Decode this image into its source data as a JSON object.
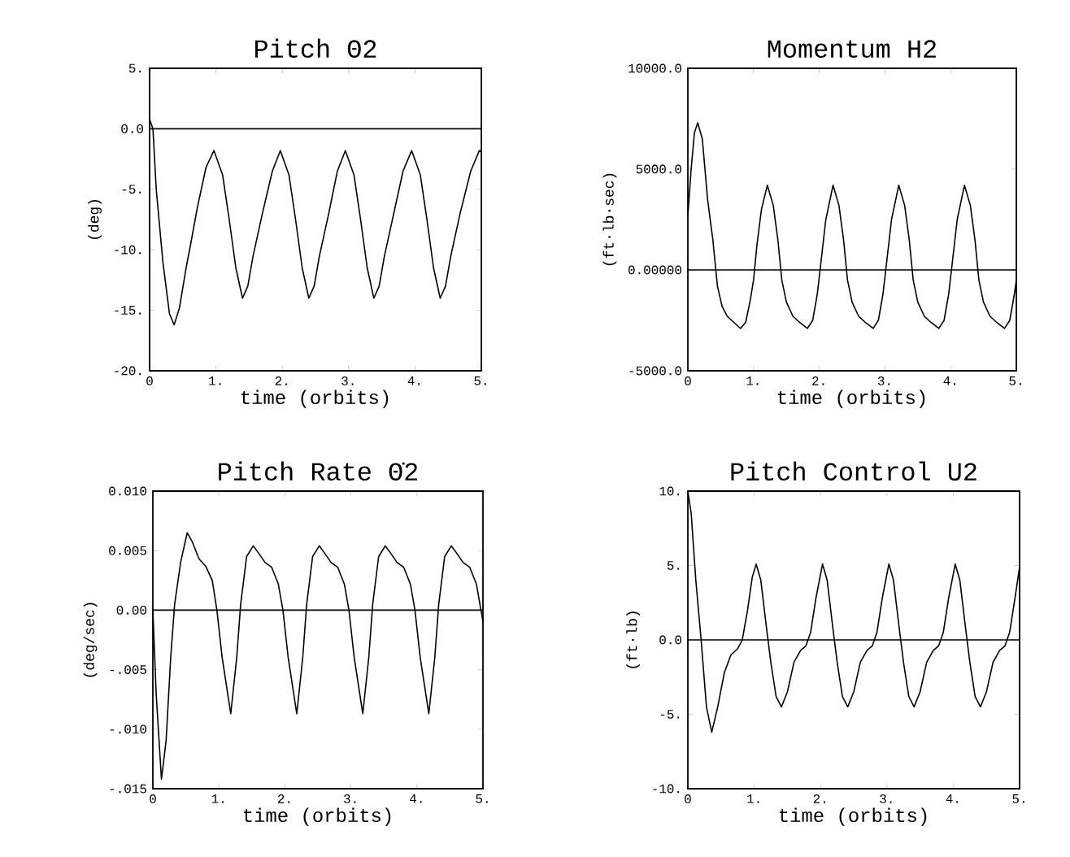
{
  "chart_data": [
    {
      "type": "line",
      "title": "Pitch Θ2",
      "xlabel": "time (orbits)",
      "ylabel": "(deg)",
      "xlim": [
        0,
        5
      ],
      "ylim": [
        -20,
        5
      ],
      "xticks": [
        0,
        {
          "value": 1,
          "label": "1."
        },
        {
          "value": 2,
          "label": "2."
        },
        {
          "value": 3,
          "label": "3."
        },
        {
          "value": 4,
          "label": "4."
        },
        {
          "value": 5,
          "label": "5."
        }
      ],
      "yticks": [
        {
          "value": -20,
          "label": "-20."
        },
        {
          "value": -15,
          "label": "-15."
        },
        {
          "value": -10,
          "label": "-10."
        },
        {
          "value": -5,
          "label": "-5."
        },
        {
          "value": 0,
          "label": "0.0"
        },
        {
          "value": 5,
          "label": "5."
        }
      ],
      "ref_lines": [
        {
          "axis": "y",
          "value": 0,
          "color": "#000000"
        }
      ],
      "series": [
        {
          "color": "#000000",
          "x": [
            0,
            0.05,
            0.1,
            0.2,
            0.3,
            0.37,
            0.45,
            0.55,
            0.62,
            0.72,
            0.85,
            0.97,
            1.1,
            1.2,
            1.3,
            1.4,
            1.48,
            1.56,
            1.7,
            1.85,
            1.97,
            2.1,
            2.2,
            2.3,
            2.4,
            2.48,
            2.56,
            2.7,
            2.83,
            2.95,
            3.08,
            3.18,
            3.28,
            3.38,
            3.46,
            3.54,
            3.68,
            3.82,
            3.95,
            4.08,
            4.18,
            4.28,
            4.38,
            4.46,
            4.54,
            4.68,
            4.84,
            4.97,
            5.0
          ],
          "values": [
            0.8,
            0,
            -5,
            -11,
            -15.3,
            -16.2,
            -14.8,
            -11.5,
            -9.5,
            -6.5,
            -3.2,
            -1.8,
            -3.8,
            -7.5,
            -11.5,
            -14,
            -13,
            -10.5,
            -7,
            -3.5,
            -1.8,
            -3.8,
            -7.5,
            -11.5,
            -14,
            -13,
            -10.5,
            -7,
            -3.5,
            -1.8,
            -3.8,
            -7.5,
            -11.5,
            -14,
            -13,
            -10.5,
            -7,
            -3.5,
            -1.8,
            -3.8,
            -7.5,
            -11.5,
            -14,
            -13,
            -10.5,
            -7,
            -3.5,
            -1.8,
            -1.9
          ]
        }
      ]
    },
    {
      "type": "line",
      "title": "Momentum H2",
      "xlabel": "time (orbits)",
      "ylabel": "(ft·lb·sec)",
      "xlim": [
        0,
        5
      ],
      "ylim": [
        -5000,
        10000
      ],
      "xticks": [
        0,
        {
          "value": 1,
          "label": "1."
        },
        {
          "value": 2,
          "label": "2."
        },
        {
          "value": 3,
          "label": "3."
        },
        {
          "value": 4,
          "label": "4."
        },
        {
          "value": 5,
          "label": "5."
        }
      ],
      "yticks": [
        {
          "value": -5000,
          "label": "-5000.0"
        },
        {
          "value": 0,
          "label": "0.00000"
        },
        {
          "value": 5000,
          "label": "5000.0"
        },
        {
          "value": 10000,
          "label": "10000.0"
        }
      ],
      "ref_lines": [
        {
          "axis": "y",
          "value": 0,
          "color": "#000000"
        }
      ],
      "series": [
        {
          "color": "#000000",
          "x": [
            0,
            0.05,
            0.1,
            0.15,
            0.22,
            0.3,
            0.38,
            0.45,
            0.52,
            0.6,
            0.7,
            0.8,
            0.88,
            0.95,
            1.0,
            1.05,
            1.12,
            1.21,
            1.3,
            1.37,
            1.43,
            1.5,
            1.6,
            1.7,
            1.82,
            1.9,
            1.97,
            2.03,
            2.1,
            2.21,
            2.3,
            2.37,
            2.43,
            2.5,
            2.6,
            2.7,
            2.82,
            2.9,
            2.97,
            3.03,
            3.1,
            3.21,
            3.3,
            3.37,
            3.43,
            3.5,
            3.6,
            3.7,
            3.82,
            3.9,
            3.97,
            4.03,
            4.1,
            4.21,
            4.3,
            4.37,
            4.43,
            4.5,
            4.6,
            4.7,
            4.82,
            4.9,
            4.97,
            5.0
          ],
          "values": [
            2700,
            5000,
            6800,
            7300,
            6500,
            3500,
            1500,
            -800,
            -1800,
            -2300,
            -2600,
            -2900,
            -2600,
            -1500,
            -500,
            1200,
            3000,
            4200,
            3200,
            1500,
            -500,
            -1600,
            -2300,
            -2600,
            -2900,
            -2500,
            -1200,
            500,
            2500,
            4200,
            3200,
            1500,
            -500,
            -1600,
            -2300,
            -2600,
            -2900,
            -2500,
            -1200,
            500,
            2500,
            4200,
            3200,
            1500,
            -500,
            -1600,
            -2300,
            -2600,
            -2900,
            -2500,
            -1200,
            500,
            2500,
            4200,
            3200,
            1500,
            -500,
            -1600,
            -2300,
            -2600,
            -2900,
            -2500,
            -1200,
            -500
          ]
        }
      ]
    },
    {
      "type": "line",
      "title": "Pitch Rate Θ̇2",
      "xlabel": "time (orbits)",
      "ylabel": "(deg/sec)",
      "xlim": [
        0,
        5
      ],
      "ylim": [
        -0.015,
        0.01
      ],
      "xticks": [
        0,
        {
          "value": 1,
          "label": "1."
        },
        {
          "value": 2,
          "label": "2."
        },
        {
          "value": 3,
          "label": "3."
        },
        {
          "value": 4,
          "label": "4."
        },
        {
          "value": 5,
          "label": "5."
        }
      ],
      "yticks": [
        {
          "value": -0.015,
          "label": "-.015"
        },
        {
          "value": -0.01,
          "label": "-.010"
        },
        {
          "value": -0.005,
          "label": "-.005"
        },
        {
          "value": 0,
          "label": "0.00"
        },
        {
          "value": 0.005,
          "label": "0.005"
        },
        {
          "value": 0.01,
          "label": "0.010"
        }
      ],
      "ref_lines": [
        {
          "axis": "y",
          "value": 0,
          "color": "#000000"
        }
      ],
      "series": [
        {
          "color": "#000000",
          "x": [
            0,
            0.05,
            0.13,
            0.2,
            0.27,
            0.33,
            0.42,
            0.52,
            0.6,
            0.7,
            0.8,
            0.9,
            0.97,
            1.05,
            1.18,
            1.27,
            1.33,
            1.42,
            1.52,
            1.6,
            1.7,
            1.8,
            1.9,
            1.97,
            2.05,
            2.18,
            2.27,
            2.33,
            2.42,
            2.52,
            2.6,
            2.7,
            2.8,
            2.9,
            2.97,
            3.05,
            3.18,
            3.27,
            3.33,
            3.42,
            3.52,
            3.6,
            3.7,
            3.8,
            3.9,
            3.97,
            4.05,
            4.18,
            4.27,
            4.33,
            4.42,
            4.52,
            4.6,
            4.7,
            4.8,
            4.9,
            4.97,
            5.0
          ],
          "values": [
            0,
            -0.007,
            -0.0142,
            -0.011,
            -0.004,
            0.0005,
            0.004,
            0.0065,
            0.0057,
            0.0043,
            0.0037,
            0.0025,
            0,
            -0.004,
            -0.0087,
            -0.004,
            0.0005,
            0.0045,
            0.0054,
            0.0048,
            0.004,
            0.0036,
            0.0022,
            0,
            -0.004,
            -0.0087,
            -0.004,
            0.0005,
            0.0045,
            0.0054,
            0.0048,
            0.004,
            0.0036,
            0.0022,
            0,
            -0.004,
            -0.0087,
            -0.004,
            0.0005,
            0.0045,
            0.0054,
            0.0048,
            0.004,
            0.0036,
            0.0022,
            0,
            -0.004,
            -0.0087,
            -0.004,
            0.0005,
            0.0045,
            0.0054,
            0.0048,
            0.004,
            0.0036,
            0.0022,
            0,
            -0.001
          ]
        }
      ]
    },
    {
      "type": "line",
      "title": "Pitch Control U2",
      "xlabel": "time (orbits)",
      "ylabel": "(ft·lb)",
      "xlim": [
        0,
        5
      ],
      "ylim": [
        -10,
        10
      ],
      "xticks": [
        0,
        {
          "value": 1,
          "label": "1."
        },
        {
          "value": 2,
          "label": "2."
        },
        {
          "value": 3,
          "label": "3."
        },
        {
          "value": 4,
          "label": "4."
        },
        {
          "value": 5,
          "label": "5."
        }
      ],
      "yticks": [
        {
          "value": -10,
          "label": "-10."
        },
        {
          "value": -5,
          "label": "-5."
        },
        {
          "value": 0,
          "label": "0.0"
        },
        {
          "value": 5,
          "label": "5."
        },
        {
          "value": 10,
          "label": "10."
        }
      ],
      "ref_lines": [
        {
          "axis": "y",
          "value": 0,
          "color": "#000000"
        }
      ],
      "series": [
        {
          "color": "#000000",
          "x": [
            0,
            0.05,
            0.12,
            0.2,
            0.28,
            0.36,
            0.45,
            0.55,
            0.65,
            0.75,
            0.82,
            0.9,
            0.97,
            1.03,
            1.1,
            1.18,
            1.25,
            1.33,
            1.41,
            1.5,
            1.6,
            1.7,
            1.78,
            1.85,
            1.93,
            2.03,
            2.1,
            2.18,
            2.25,
            2.33,
            2.41,
            2.5,
            2.6,
            2.7,
            2.78,
            2.85,
            2.93,
            3.03,
            3.1,
            3.18,
            3.25,
            3.33,
            3.41,
            3.5,
            3.6,
            3.7,
            3.78,
            3.85,
            3.93,
            4.03,
            4.1,
            4.18,
            4.25,
            4.33,
            4.41,
            4.5,
            4.6,
            4.7,
            4.78,
            4.85,
            4.93,
            5.0
          ],
          "values": [
            10,
            8.5,
            4,
            0,
            -4.5,
            -6.2,
            -4.5,
            -2.2,
            -1,
            -0.6,
            0,
            2,
            4.2,
            5.1,
            4,
            1,
            -1.5,
            -3.8,
            -4.5,
            -3.5,
            -1.5,
            -0.7,
            -0.4,
            0.5,
            2.8,
            5.1,
            4,
            1,
            -1.5,
            -3.8,
            -4.5,
            -3.5,
            -1.5,
            -0.7,
            -0.4,
            0.5,
            2.8,
            5.1,
            4,
            1,
            -1.5,
            -3.8,
            -4.5,
            -3.5,
            -1.5,
            -0.7,
            -0.4,
            0.5,
            2.8,
            5.1,
            4,
            1,
            -1.5,
            -3.8,
            -4.5,
            -3.5,
            -1.5,
            -0.7,
            -0.4,
            0.5,
            2.8,
            4.9
          ]
        }
      ]
    }
  ]
}
